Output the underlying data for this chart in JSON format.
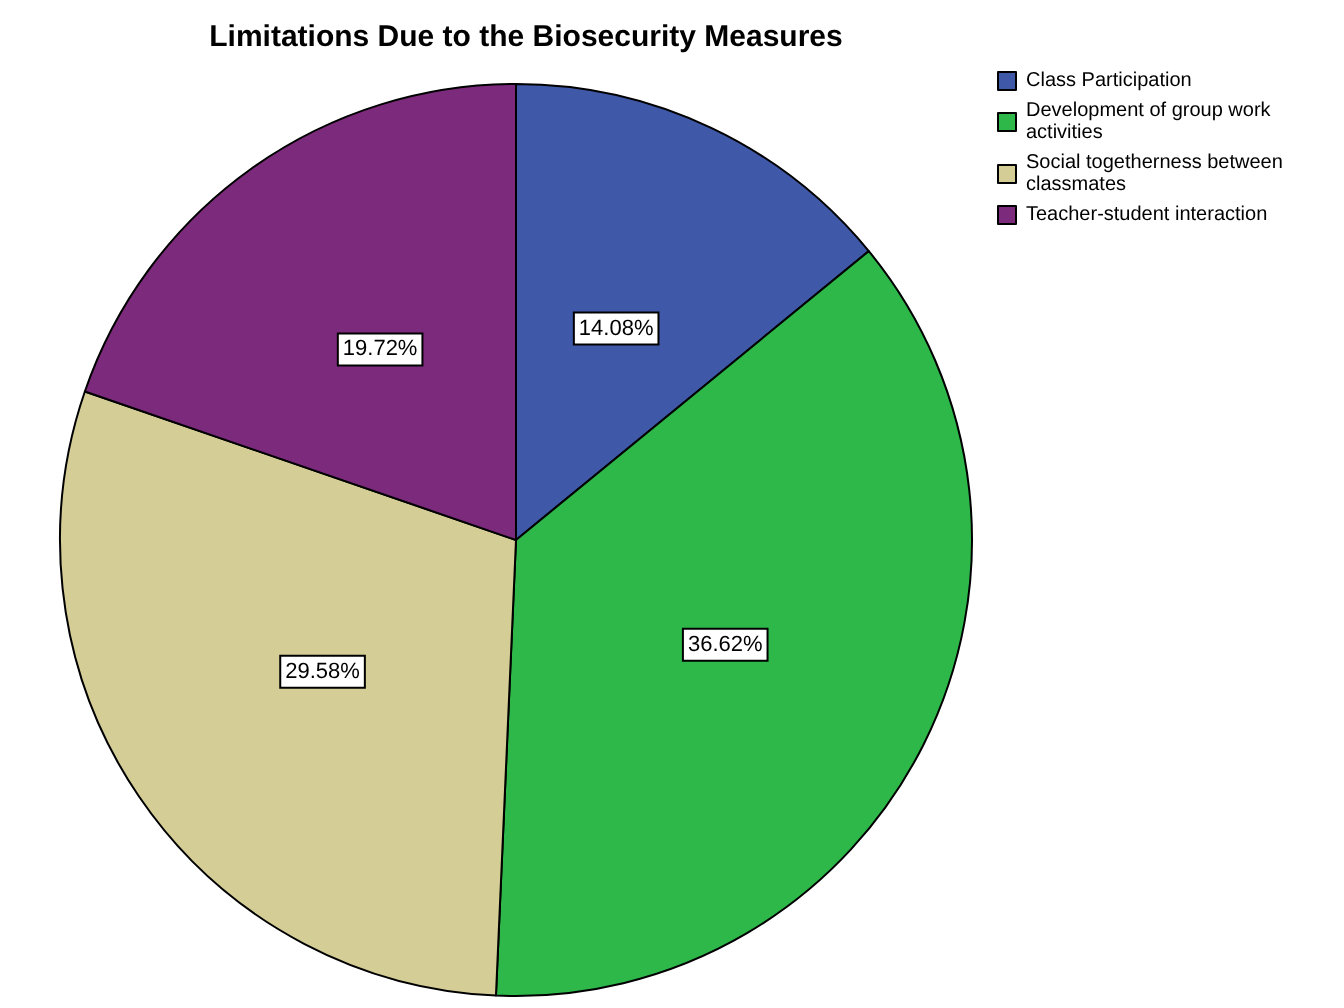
{
  "chart_data": {
    "type": "pie",
    "title": "Limitations Due to the Biosecurity Measures",
    "categories": [
      "Class Participation",
      "Development of group work activities",
      "Social togetherness between classmates",
      "Teacher-student interaction"
    ],
    "values": [
      14.08,
      36.62,
      29.58,
      19.72
    ],
    "colors": [
      "#3f58a8",
      "#2eb84a",
      "#d4cd96",
      "#7c2a7c"
    ],
    "value_labels": [
      "14.08%",
      "36.62%",
      "29.58%",
      "19.72%"
    ],
    "legend": "top right"
  }
}
